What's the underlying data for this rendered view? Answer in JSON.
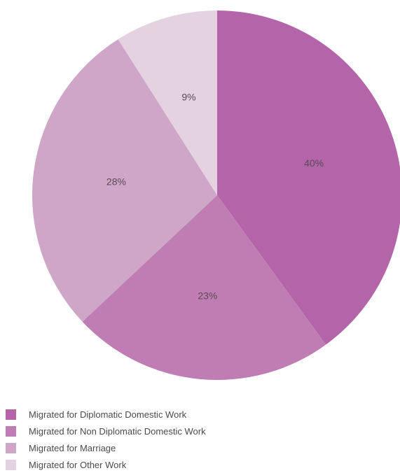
{
  "chart_data": {
    "type": "pie",
    "title": "",
    "categories": [
      "Migrated for Diplomatic Domestic Work",
      "Migrated for Non Diplomatic Domestic Work",
      "Migrated for Marriage",
      "Migrated for Other Work"
    ],
    "values": [
      40,
      23,
      28,
      9
    ],
    "data_labels": [
      "40%",
      "23%",
      "28%",
      "9%"
    ],
    "colors": [
      "#b464a8",
      "#bf7db3",
      "#cea6c8",
      "#e4d2e1"
    ],
    "start_angle": "12 o'clock",
    "direction": "clockwise",
    "legend_position": "bottom-left"
  }
}
